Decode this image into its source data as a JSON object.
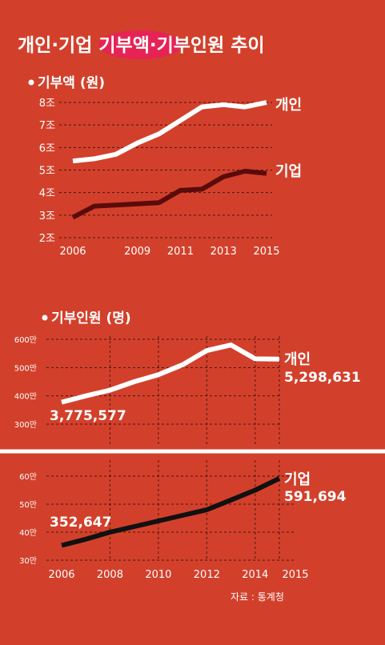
{
  "title": "개인·기업 기부액·기부인원 추이",
  "source": "자료 : 통계청",
  "colors": {
    "background": "#d2402b",
    "title_highlight": "#e8205a",
    "individual": "#ffffff",
    "corporate_amount": "#5a0b0b",
    "corporate_donors": "#111111",
    "grid": "#1a0505",
    "divider": "#ffffff"
  },
  "chart_data": [
    {
      "type": "line",
      "title": "기부액 (원)",
      "x": [
        2006,
        2007,
        2008,
        2009,
        2010,
        2011,
        2012,
        2013,
        2014,
        2015
      ],
      "x_tick_labels": [
        "2006",
        "2009",
        "2011",
        "2013",
        "2015"
      ],
      "x_tick_values": [
        2006,
        2009,
        2011,
        2013,
        2015
      ],
      "y_tick_labels": [
        "2조",
        "3조",
        "4조",
        "5조",
        "6조",
        "7조",
        "8조"
      ],
      "y_tick_values": [
        2,
        3,
        4,
        5,
        6,
        7,
        8
      ],
      "ylim": [
        2,
        8
      ],
      "grid": "horizontal dashed",
      "series": [
        {
          "name": "개인",
          "values": [
            5.4,
            5.5,
            5.7,
            6.2,
            6.6,
            7.2,
            7.8,
            7.9,
            7.8,
            8.0
          ]
        },
        {
          "name": "기업",
          "values": [
            2.9,
            3.4,
            3.45,
            3.5,
            3.55,
            4.1,
            4.15,
            4.7,
            4.95,
            4.85
          ]
        }
      ]
    },
    {
      "type": "line",
      "title": "기부인원 (명)",
      "x": [
        2006,
        2007,
        2008,
        2009,
        2010,
        2011,
        2012,
        2013,
        2014,
        2015
      ],
      "x_tick_labels": [
        "2006",
        "2008",
        "2010",
        "2012",
        "2014",
        "2015"
      ],
      "x_tick_values": [
        2006,
        2008,
        2010,
        2012,
        2014,
        2015
      ],
      "grid": "vertical and horizontal dashed",
      "panels": [
        {
          "y_unit": "만",
          "y_tick_labels": [
            "300만",
            "400만",
            "500만",
            "600만"
          ],
          "y_tick_values": [
            300,
            400,
            500,
            600
          ],
          "ylim": [
            300,
            600
          ],
          "series": [
            {
              "name": "개인",
              "values": [
                377.6,
                400,
                420,
                450,
                475,
                510,
                560,
                580,
                531,
                529.9
              ],
              "start_label": "3,775,577",
              "end_label": "5,298,631"
            }
          ]
        },
        {
          "y_unit": "만",
          "y_tick_labels": [
            "30만",
            "40만",
            "50만",
            "60만"
          ],
          "y_tick_values": [
            30,
            40,
            50,
            60
          ],
          "ylim": [
            30,
            60
          ],
          "series": [
            {
              "name": "기업",
              "values": [
                35.3,
                37.5,
                40,
                42,
                44,
                46,
                48,
                51.5,
                55,
                59.2
              ],
              "start_label": "352,647",
              "end_label": "591,694"
            }
          ]
        }
      ]
    }
  ]
}
